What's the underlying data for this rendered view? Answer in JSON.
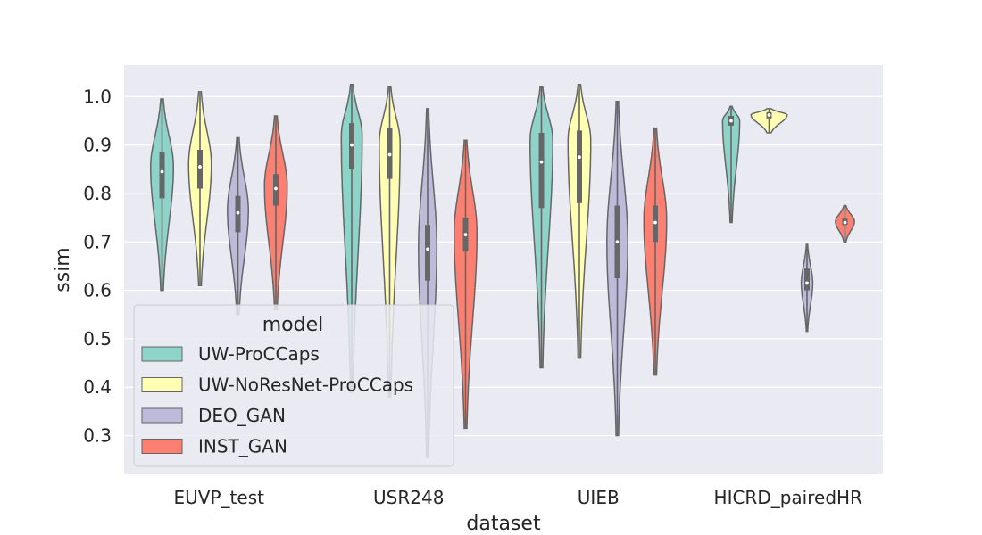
{
  "chart_data": {
    "type": "violin",
    "xlabel": "dataset",
    "ylabel": "ssim",
    "ylim": [
      0.22,
      1.065
    ],
    "yticks": [
      "0.3",
      "0.4",
      "0.5",
      "0.6",
      "0.7",
      "0.8",
      "0.9",
      "1.0"
    ],
    "grid": true,
    "categories": [
      "EUVP_test",
      "USR248",
      "UIEB",
      "HICRD_pairedHR"
    ],
    "legend": {
      "title": "model",
      "placement": "lower-left"
    },
    "series": [
      {
        "name": "UW-ProCCaps",
        "color": "#8dd3c7",
        "violins": [
          {
            "min": 0.6,
            "q1": 0.79,
            "median": 0.845,
            "q3": 0.885,
            "max": 0.995,
            "mode": 0.855,
            "width": 0.6
          },
          {
            "min": 0.39,
            "q1": 0.85,
            "median": 0.9,
            "q3": 0.945,
            "max": 1.025,
            "mode": 0.92,
            "width": 0.55
          },
          {
            "min": 0.44,
            "q1": 0.77,
            "median": 0.865,
            "q3": 0.925,
            "max": 1.02,
            "mode": 0.91,
            "width": 0.6
          },
          {
            "min": 0.74,
            "q1": 0.94,
            "median": 0.95,
            "q3": 0.96,
            "max": 0.98,
            "mode": 0.95,
            "width": 0.45
          }
        ]
      },
      {
        "name": "UW-NoResNet-ProCCaps",
        "color": "#ffffb3",
        "violins": [
          {
            "min": 0.61,
            "q1": 0.81,
            "median": 0.855,
            "q3": 0.89,
            "max": 1.01,
            "mode": 0.86,
            "width": 0.6
          },
          {
            "min": 0.38,
            "q1": 0.83,
            "median": 0.88,
            "q3": 0.935,
            "max": 1.02,
            "mode": 0.905,
            "width": 0.55
          },
          {
            "min": 0.46,
            "q1": 0.78,
            "median": 0.875,
            "q3": 0.93,
            "max": 1.025,
            "mode": 0.91,
            "width": 0.6
          },
          {
            "min": 0.925,
            "q1": 0.955,
            "median": 0.962,
            "q3": 0.968,
            "max": 0.975,
            "mode": 0.962,
            "width": 0.95
          }
        ]
      },
      {
        "name": "DEO_GAN",
        "color": "#bebada",
        "violins": [
          {
            "min": 0.55,
            "q1": 0.72,
            "median": 0.76,
            "q3": 0.795,
            "max": 0.915,
            "mode": 0.765,
            "width": 0.55
          },
          {
            "min": 0.255,
            "q1": 0.62,
            "median": 0.685,
            "q3": 0.735,
            "max": 0.975,
            "mode": 0.69,
            "width": 0.48
          },
          {
            "min": 0.3,
            "q1": 0.625,
            "median": 0.7,
            "q3": 0.775,
            "max": 0.99,
            "mode": 0.7,
            "width": 0.55
          },
          {
            "min": 0.515,
            "q1": 0.6,
            "median": 0.615,
            "q3": 0.645,
            "max": 0.695,
            "mode": 0.615,
            "width": 0.3
          }
        ]
      },
      {
        "name": "INST_GAN",
        "color": "#fb8072",
        "violins": [
          {
            "min": 0.56,
            "q1": 0.775,
            "median": 0.81,
            "q3": 0.84,
            "max": 0.96,
            "mode": 0.815,
            "width": 0.6
          },
          {
            "min": 0.315,
            "q1": 0.68,
            "median": 0.715,
            "q3": 0.75,
            "max": 0.91,
            "mode": 0.72,
            "width": 0.6
          },
          {
            "min": 0.425,
            "q1": 0.7,
            "median": 0.74,
            "q3": 0.775,
            "max": 0.935,
            "mode": 0.745,
            "width": 0.6
          },
          {
            "min": 0.7,
            "q1": 0.735,
            "median": 0.74,
            "q3": 0.748,
            "max": 0.775,
            "mode": 0.742,
            "width": 0.5
          }
        ]
      }
    ]
  }
}
